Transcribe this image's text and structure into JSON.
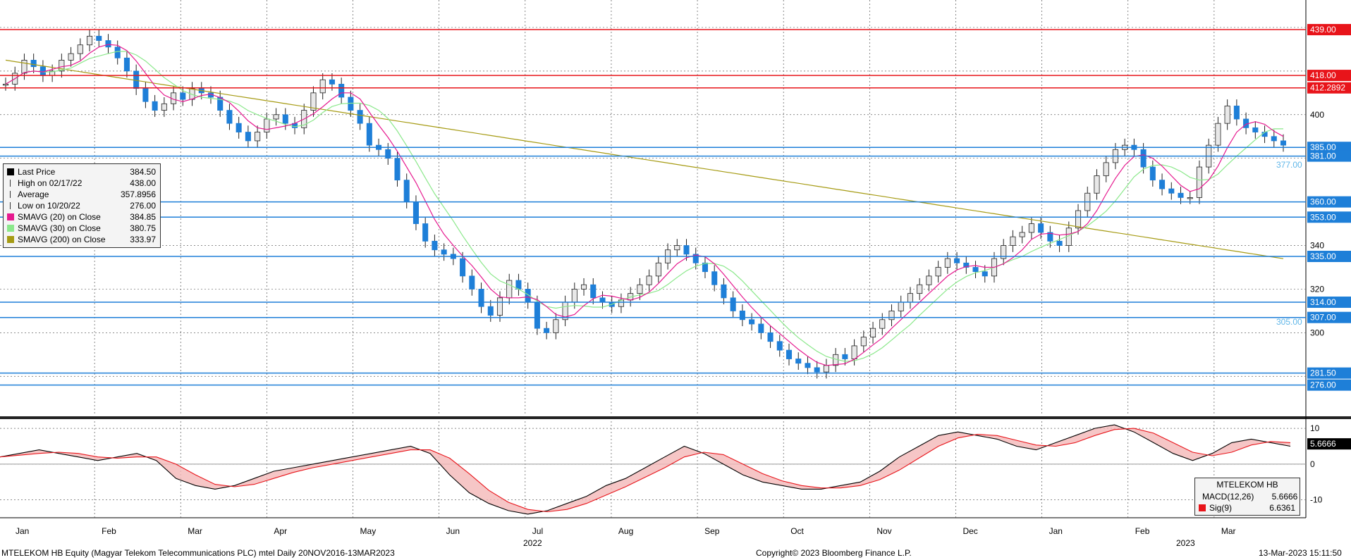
{
  "chart_data": [
    {
      "type": "candlestick",
      "ylim": [
        262,
        450
      ],
      "y_ticks": [
        300,
        320,
        340,
        400
      ],
      "x_months": [
        "Jan",
        "Feb",
        "Mar",
        "Apr",
        "May",
        "Jun",
        "Jul",
        "Aug",
        "Sep",
        "Oct",
        "Nov",
        "Dec",
        "Jan",
        "Feb",
        "Mar"
      ],
      "x_years": [
        "2022",
        "2023"
      ],
      "price_levels": [
        {
          "value": 439.0,
          "label": "439.00",
          "color": "#e8141a"
        },
        {
          "value": 418.0,
          "label": "418.00",
          "color": "#e8141a"
        },
        {
          "value": 412.2892,
          "label": "412.2892",
          "color": "#e8141a"
        },
        {
          "value": 385.0,
          "label": "385.00",
          "color": "#1e7fd8"
        },
        {
          "value": 381.0,
          "label": "381.00",
          "color": "#1e7fd8"
        },
        {
          "value": 360.0,
          "label": "360.00",
          "color": "#1e7fd8"
        },
        {
          "value": 353.0,
          "label": "353.00",
          "color": "#1e7fd8"
        },
        {
          "value": 335.0,
          "label": "335.00",
          "color": "#1e7fd8"
        },
        {
          "value": 314.0,
          "label": "314.00",
          "color": "#1e7fd8"
        },
        {
          "value": 307.0,
          "label": "307.00",
          "color": "#1e7fd8"
        },
        {
          "value": 281.5,
          "label": "281.50",
          "color": "#1e7fd8"
        },
        {
          "value": 276.0,
          "label": "276.00",
          "color": "#1e7fd8"
        }
      ],
      "annotations": [
        {
          "label": "377.00",
          "y": 377.0
        },
        {
          "label": "305.00",
          "y": 305.0
        }
      ],
      "close_series": [
        414,
        419,
        425,
        422,
        418,
        420,
        425,
        428,
        432,
        436,
        434,
        431,
        426,
        420,
        412,
        406,
        402,
        405,
        410,
        407,
        412,
        410,
        408,
        402,
        396,
        392,
        388,
        392,
        398,
        400,
        396,
        394,
        402,
        410,
        416,
        414,
        408,
        402,
        396,
        386,
        384,
        380,
        370,
        360,
        350,
        342,
        338,
        336,
        334,
        326,
        320,
        312,
        308,
        316,
        324,
        320,
        314,
        302,
        300,
        306,
        314,
        320,
        322,
        316,
        314,
        312,
        315,
        318,
        322,
        326,
        332,
        338,
        340,
        336,
        332,
        328,
        322,
        316,
        310,
        306,
        304,
        300,
        296,
        292,
        288,
        286,
        284,
        282,
        285,
        290,
        288,
        294,
        298,
        302,
        306,
        310,
        314,
        318,
        322,
        326,
        330,
        334,
        332,
        330,
        328,
        326,
        334,
        340,
        344,
        346,
        350,
        346,
        342,
        340,
        348,
        356,
        364,
        372,
        378,
        384,
        386,
        384,
        376,
        370,
        366,
        364,
        362,
        362,
        376,
        386,
        396,
        404,
        398,
        394,
        392,
        390,
        388,
        386
      ],
      "legend": {
        "rows": [
          {
            "name": "Last Price",
            "value": "384.50",
            "color": "#000000"
          },
          {
            "name": "High on 02/17/22",
            "value": "438.00",
            "color": ""
          },
          {
            "name": "Average",
            "value": "357.8956",
            "color": ""
          },
          {
            "name": "Low on 10/20/22",
            "value": "276.00",
            "color": ""
          },
          {
            "name": "SMAVG (20)  on Close",
            "value": "384.85",
            "color": "#e6198f"
          },
          {
            "name": "SMAVG (30)  on Close",
            "value": "380.75",
            "color": "#8be88b"
          },
          {
            "name": "SMAVG (200)  on Close",
            "value": "333.97",
            "color": "#a69b14"
          }
        ]
      }
    },
    {
      "type": "line",
      "name": "MACD",
      "ylim": [
        -15,
        12
      ],
      "y_ticks": [
        10,
        0,
        -10
      ],
      "last_value_tag": "5.6666",
      "legend": {
        "title": "MTELEKOM HB",
        "rows": [
          {
            "name": "MACD(12,26)",
            "value": "5.6666",
            "color": "#000000"
          },
          {
            "name": "Sig(9)",
            "value": "6.6361",
            "color": "#e8141a"
          }
        ]
      },
      "macd_series": [
        2,
        3,
        4,
        3,
        2,
        1,
        2,
        3,
        1,
        -4,
        -6,
        -7,
        -6,
        -4,
        -2,
        -1,
        0,
        1,
        2,
        3,
        4,
        5,
        3,
        -3,
        -8,
        -11,
        -13,
        -14,
        -13,
        -11,
        -9,
        -6,
        -4,
        -1,
        2,
        5,
        3,
        0,
        -3,
        -5,
        -6,
        -7,
        -7,
        -6,
        -5,
        -2,
        2,
        5,
        8,
        9,
        8,
        7,
        5,
        4,
        6,
        8,
        10,
        11,
        9,
        6,
        3,
        1,
        3,
        6,
        7,
        6,
        5
      ]
    }
  ],
  "footer": {
    "left": "MTELEKOM HB Equity (Magyar Telekom Telecommunications PLC) mtel  Daily 20NOV2016-13MAR2023",
    "center": "Copyright© 2023 Bloomberg Finance L.P.",
    "right": "13-Mar-2023 15:11:50"
  }
}
